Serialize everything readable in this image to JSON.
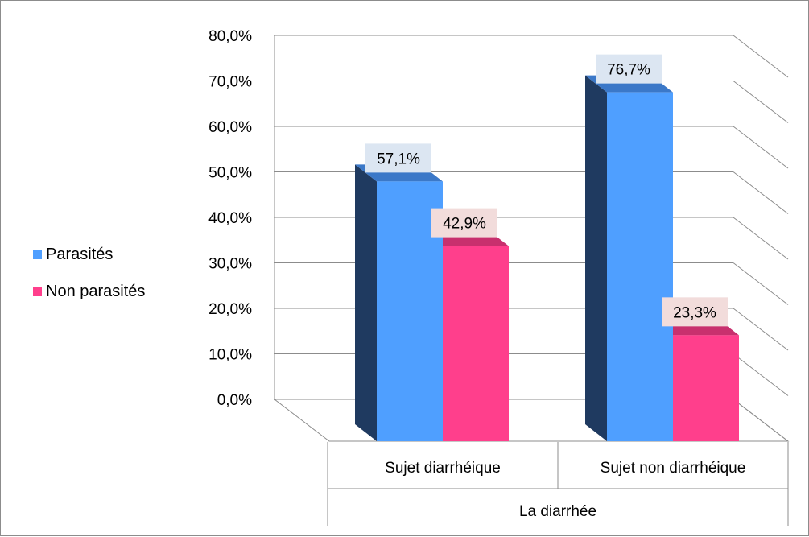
{
  "chart_data": {
    "type": "bar",
    "categories": [
      "Sujet diarrhéique",
      "Sujet non diarrhéique"
    ],
    "series": [
      {
        "name": "Parasités",
        "values": [
          57.1,
          76.7
        ],
        "labels": [
          "57,1%",
          "76,7%"
        ]
      },
      {
        "name": "Non parasités",
        "values": [
          42.9,
          23.3
        ],
        "labels": [
          "42,9%",
          "23,3%"
        ]
      }
    ],
    "xlabel": "La diarrhée",
    "ylabel": "",
    "ylim": [
      0,
      80
    ],
    "yticks": [
      "0,0%",
      "10,0%",
      "20,0%",
      "30,0%",
      "40,0%",
      "50,0%",
      "60,0%",
      "70,0%",
      "80,0%"
    ],
    "legend_position": "left",
    "grid": true,
    "style": "3d-clustered-column",
    "colors": {
      "series0_front": "#4f9fff",
      "series0_side": "#1f3a60",
      "series0_top": "#3b78c8",
      "series1_front": "#ff3f8c",
      "series1_top": "#c8306e",
      "label0_bg": "#dce6f2",
      "label1_bg": "#f2dcdb",
      "grid": "#8c8c8c"
    }
  }
}
